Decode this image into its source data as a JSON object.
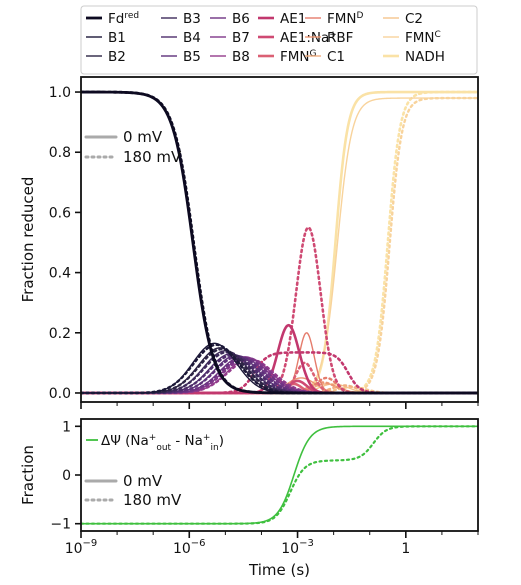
{
  "chart_data": [
    {
      "type": "line",
      "xscale": "log",
      "xlim": [
        1e-09,
        100
      ],
      "ylim": [
        -0.03,
        1.05
      ],
      "ylabel": "Fraction reduced",
      "yticks": [
        "0.0",
        "0.2",
        "0.4",
        "0.6",
        "0.8",
        "1.0"
      ],
      "legend_position": "top",
      "series": [
        {
          "name": "Fd",
          "sup": "red",
          "color": "#0d0a21",
          "width": 2.8
        },
        {
          "name": "B1",
          "color": "#1c1838",
          "width": 1.4
        },
        {
          "name": "B2",
          "color": "#2c2444",
          "width": 1.4
        },
        {
          "name": "B3",
          "color": "#3d2a5a",
          "width": 1.4
        },
        {
          "name": "B4",
          "color": "#4e2d6c",
          "width": 1.4
        },
        {
          "name": "B5",
          "color": "#5e317a",
          "width": 1.4
        },
        {
          "name": "B6",
          "color": "#6e3483",
          "width": 1.4
        },
        {
          "name": "B7",
          "color": "#80378a",
          "width": 1.4
        },
        {
          "name": "B8",
          "color": "#933b8c",
          "width": 1.4
        },
        {
          "name": "AE1",
          "color": "#c2386e",
          "width": 2.6
        },
        {
          "name": "AE1:Na",
          "sup": "+",
          "color": "#cf4a73",
          "width": 2.6
        },
        {
          "name": "FMN",
          "sup": "G",
          "color": "#db6074",
          "width": 2.6
        },
        {
          "name": "FMN",
          "sup": "D",
          "color": "#e57c6c",
          "width": 1.4
        },
        {
          "name": "RBF",
          "color": "#ec9673",
          "width": 1.4
        },
        {
          "name": "C1",
          "color": "#f1ae80",
          "width": 1.4
        },
        {
          "name": "C2",
          "color": "#f5c48d",
          "width": 1.4
        },
        {
          "name": "FMN",
          "sup": "C",
          "color": "#f8d39c",
          "width": 1.4
        },
        {
          "name": "NADH",
          "color": "#fae2a6",
          "width": 2.6
        }
      ],
      "style_legend": [
        {
          "label": "0 mV",
          "style": "solid",
          "color": "#aaaaaa"
        },
        {
          "label": "180 mV",
          "style": "dotted",
          "color": "#aaaaaa"
        }
      ]
    },
    {
      "type": "line",
      "xscale": "log",
      "xlim": [
        1e-09,
        100
      ],
      "ylim": [
        -1.15,
        1.15
      ],
      "xlabel": "Time (s)",
      "ylabel": "Fraction",
      "yticks": [
        "−1",
        "0",
        "1"
      ],
      "xticks": [
        {
          "base": "10",
          "exp": "−9",
          "value": 1e-09
        },
        {
          "base": "10",
          "exp": "−6",
          "value": 1e-06
        },
        {
          "base": "10",
          "exp": "−3",
          "value": 0.001
        },
        {
          "base": "1",
          "exp": "",
          "value": 1
        }
      ],
      "series": [
        {
          "name": "ΔΨ (Na",
          "sub_out": "out",
          "sub_in": "in",
          "color": "#3fc03f"
        }
      ],
      "legend_text": {
        "prefix": "ΔΨ (Na",
        "plus": "+",
        "out": "out",
        "mid": " - Na",
        "in": "in",
        "suffix": ")"
      },
      "style_legend": [
        {
          "label": "0 mV",
          "style": "solid",
          "color": "#aaaaaa"
        },
        {
          "label": "180 mV",
          "style": "dotted",
          "color": "#aaaaaa"
        }
      ]
    }
  ]
}
